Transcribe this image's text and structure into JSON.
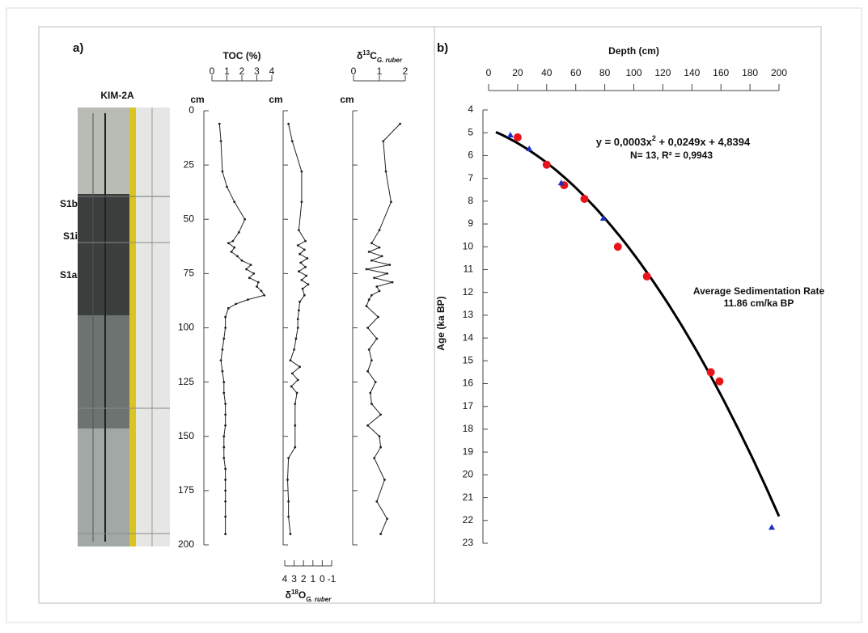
{
  "panels": [
    "a)",
    "b)"
  ],
  "core": {
    "title": "KIM-2A",
    "units": [
      "S1b",
      "S1i",
      "S1a"
    ]
  },
  "chart_data": [
    {
      "type": "profile",
      "title_parts": [
        "TOC (%)"
      ],
      "y_label": "cm",
      "color": "#222222",
      "xlim": [
        0,
        4
      ],
      "xticks": [
        0,
        1,
        2,
        3,
        4
      ],
      "ylim": [
        0,
        200
      ],
      "yticks": [
        0,
        25,
        50,
        75,
        100,
        125,
        150,
        175,
        200
      ],
      "depth": [
        6,
        14,
        28,
        35,
        42,
        50,
        56,
        60,
        61,
        63,
        65,
        67,
        69,
        71,
        73,
        75,
        77,
        79,
        81,
        83,
        85,
        87,
        89,
        91,
        95,
        100,
        105,
        110,
        115,
        120,
        125,
        130,
        135,
        140,
        145,
        150,
        155,
        160,
        165,
        170,
        175,
        180,
        187,
        195
      ],
      "values": [
        0.5,
        0.6,
        0.7,
        1.0,
        1.5,
        2.2,
        1.8,
        1.4,
        1.1,
        1.5,
        1.3,
        1.7,
        2.0,
        2.6,
        2.3,
        2.8,
        2.5,
        3.1,
        3.0,
        3.3,
        3.5,
        2.4,
        1.6,
        1.1,
        0.9,
        0.9,
        0.8,
        0.7,
        0.6,
        0.7,
        0.8,
        0.8,
        0.9,
        0.9,
        0.9,
        0.8,
        0.8,
        0.8,
        0.9,
        0.9,
        0.9,
        0.9,
        0.9,
        0.9
      ]
    },
    {
      "type": "profile",
      "title_parts": [
        "δ",
        "18",
        "O",
        "G. ruber"
      ],
      "y_label": "cm",
      "color": "#222222",
      "xlim": [
        4,
        -1
      ],
      "xticks": [
        4,
        3,
        2,
        1,
        0,
        -1
      ],
      "ylim": [
        0,
        200
      ],
      "depth": [
        6,
        14,
        28,
        42,
        55,
        60,
        62,
        64,
        66,
        68,
        70,
        72,
        74,
        76,
        78,
        80,
        82,
        85,
        88,
        92,
        96,
        100,
        105,
        110,
        115,
        118,
        121,
        124,
        127,
        130,
        135,
        145,
        155,
        160,
        170,
        180,
        187,
        195
      ],
      "values": [
        3.6,
        3.2,
        2.2,
        2.2,
        2.5,
        1.8,
        2.6,
        1.9,
        2.4,
        1.6,
        2.3,
        1.8,
        2.5,
        1.7,
        2.2,
        1.5,
        2.1,
        1.9,
        2.4,
        2.5,
        2.6,
        2.6,
        2.8,
        3.0,
        3.4,
        2.4,
        3.2,
        2.6,
        3.3,
        2.7,
        2.9,
        2.9,
        2.9,
        3.6,
        3.7,
        3.6,
        3.6,
        3.4
      ]
    },
    {
      "type": "profile",
      "title_parts": [
        "δ",
        "13",
        "C",
        "G. ruber"
      ],
      "y_label": "cm",
      "color": "#222222",
      "xlim": [
        0,
        2
      ],
      "xticks": [
        0,
        1,
        2
      ],
      "ylim": [
        0,
        200
      ],
      "depth": [
        6,
        14,
        28,
        42,
        55,
        61,
        63,
        65,
        67,
        69,
        71,
        73,
        75,
        77,
        79,
        81,
        83,
        85,
        87,
        90,
        95,
        100,
        105,
        110,
        115,
        120,
        125,
        130,
        135,
        140,
        145,
        150,
        155,
        160,
        170,
        180,
        188,
        195
      ],
      "values": [
        1.8,
        1.15,
        1.25,
        1.45,
        1.0,
        0.7,
        1.0,
        0.6,
        1.1,
        0.7,
        1.4,
        0.5,
        1.3,
        0.8,
        1.5,
        0.9,
        1.0,
        0.7,
        0.6,
        0.5,
        0.95,
        0.55,
        0.9,
        0.6,
        0.7,
        0.55,
        0.85,
        0.65,
        0.7,
        1.05,
        0.55,
        1.0,
        1.05,
        0.8,
        1.2,
        0.9,
        1.3,
        1.05
      ]
    },
    {
      "type": "scatter",
      "x_label": "Depth (cm)",
      "y_label": "Age (ka BP)",
      "xlim": [
        0,
        200
      ],
      "xticks": [
        0,
        20,
        40,
        60,
        80,
        100,
        120,
        140,
        160,
        180,
        200
      ],
      "ylim": [
        4,
        23
      ],
      "y_inverted": true,
      "yticks": [
        4,
        5,
        6,
        7,
        8,
        9,
        10,
        11,
        12,
        13,
        14,
        15,
        16,
        17,
        18,
        19,
        20,
        21,
        22,
        23
      ],
      "series": [
        {
          "color": "#e8141b",
          "marker": "circle",
          "x": [
            20,
            40,
            52,
            66,
            89,
            109,
            153,
            159
          ],
          "values": [
            5.2,
            6.4,
            7.3,
            7.9,
            10.0,
            11.3,
            15.5,
            15.9
          ]
        },
        {
          "color": "#1a2fc4",
          "marker": "triangle",
          "x": [
            15,
            28,
            50,
            79,
            195
          ],
          "values": [
            5.1,
            5.7,
            7.2,
            8.75,
            22.3
          ]
        }
      ],
      "fit": {
        "coefficients": [
          0.0003,
          0.0249,
          4.8394
        ],
        "x_range": [
          5,
          200
        ],
        "color": "#000000"
      },
      "equation_parts": [
        "y = 0,0003x",
        "2",
        " + 0,0249x + 4,8394"
      ],
      "stats": "N= 13, R² = 0,9943",
      "annotation": [
        "Average Sedimentation Rate",
        "11.86 cm/ka BP"
      ]
    }
  ]
}
